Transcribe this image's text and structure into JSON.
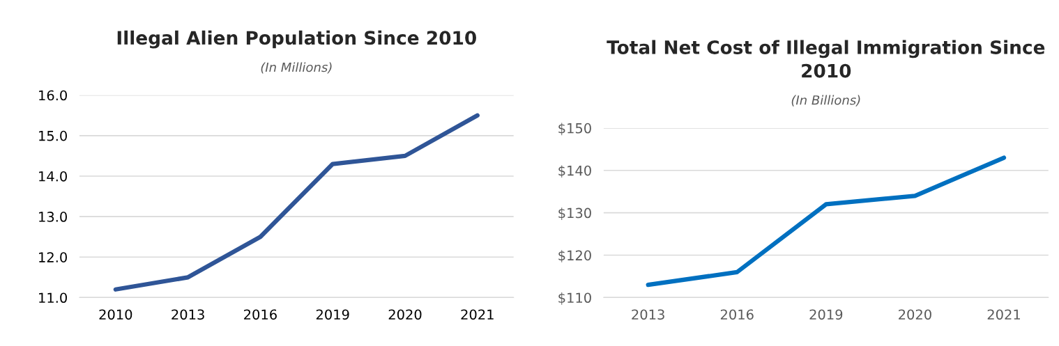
{
  "chart_data": [
    {
      "type": "line",
      "title": "Illegal Alien Population Since 2010",
      "subtitle": "(In Millions)",
      "categories": [
        "2010",
        "2013",
        "2016",
        "2019",
        "2020",
        "2021"
      ],
      "series": [
        {
          "color": "#2f5597",
          "values": [
            11.2,
            11.5,
            12.5,
            14.3,
            14.5,
            15.5
          ]
        }
      ],
      "ylim": [
        11.0,
        16.0
      ],
      "yticks": [
        {
          "value": 11,
          "label": "11.0"
        },
        {
          "value": 12,
          "label": "12.0"
        },
        {
          "value": 13,
          "label": "13.0"
        },
        {
          "value": 14,
          "label": "14.0"
        },
        {
          "value": 15,
          "label": "15.0"
        },
        {
          "value": 16,
          "label": "16.0"
        }
      ],
      "grid": "y",
      "marker": "none",
      "line_style": "solid",
      "legend": false
    },
    {
      "type": "line",
      "title": "Total Net Cost of Illegal Immigration Since 2010",
      "subtitle": "(In Billions)",
      "categories": [
        "2013",
        "2016",
        "2019",
        "2020",
        "2021"
      ],
      "series": [
        {
          "color": "#0070c0",
          "values": [
            113,
            116,
            132,
            134,
            143
          ]
        }
      ],
      "ylim": [
        110,
        150
      ],
      "yticks": [
        {
          "value": 110,
          "label": "$110"
        },
        {
          "value": 120,
          "label": "$120"
        },
        {
          "value": 130,
          "label": "$130"
        },
        {
          "value": 140,
          "label": "$140"
        },
        {
          "value": 150,
          "label": "$150"
        }
      ],
      "grid": "y",
      "marker": "none",
      "line_style": "solid",
      "legend": false
    }
  ]
}
